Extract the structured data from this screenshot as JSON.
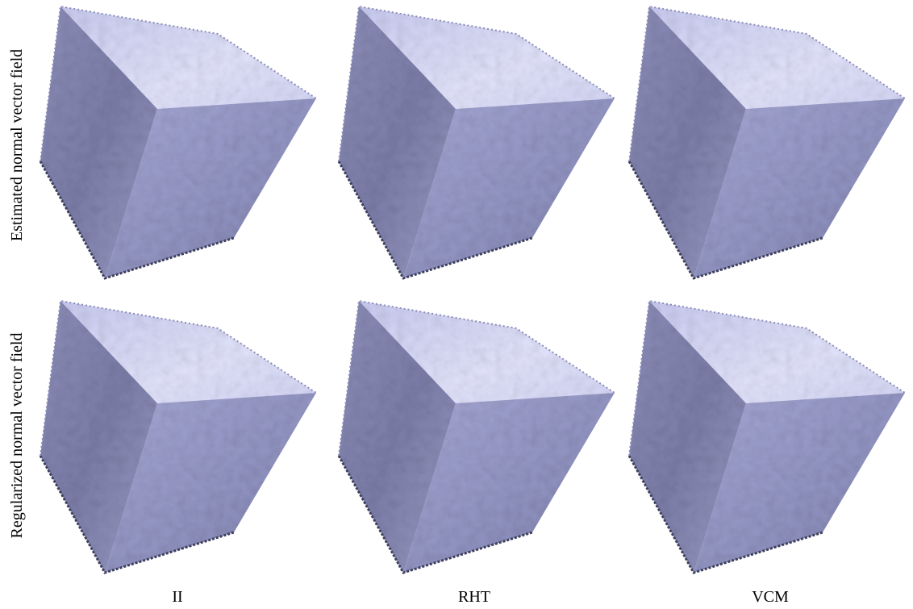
{
  "row_labels": [
    "Estimated normal vector field",
    "Regularized normal vector field"
  ],
  "column_labels": [
    "II",
    "RHT",
    "VCM"
  ]
}
